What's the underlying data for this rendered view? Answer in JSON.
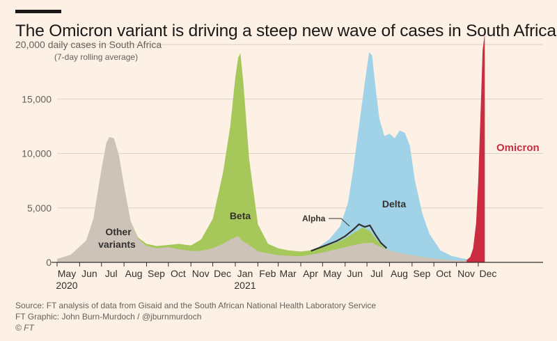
{
  "title": "The Omicron variant is driving a steep new wave of cases in South Africa",
  "chart_data": {
    "type": "area",
    "title": "The Omicron variant is driving a steep new wave of cases in South Africa",
    "ylabel": "20,000 daily cases in South Africa",
    "ylabel_sub": "(7-day rolling average)",
    "y_ticks": [
      0,
      5000,
      10000,
      15000,
      20000
    ],
    "y_tick_labels": [
      "0",
      "5,000",
      "10,000",
      "15,000",
      "20,000"
    ],
    "ylim": [
      0,
      21500
    ],
    "grid": true,
    "x_start": "2020-05-01",
    "x_end": "2021-12-10",
    "x_month_labels": [
      "May",
      "Jun",
      "Jul",
      "Aug",
      "Sep",
      "Oct",
      "Nov",
      "Dec",
      "Jan",
      "Feb",
      "Mar",
      "Apr",
      "May",
      "Jun",
      "Jul",
      "Aug",
      "Sep",
      "Oct",
      "Nov",
      "Dec"
    ],
    "x_year_labels": [
      {
        "label": "2020",
        "at": "2020-05-01"
      },
      {
        "label": "2021",
        "at": "2021-01-01"
      }
    ],
    "series": [
      {
        "name": "Other variants",
        "color": "#cdc3b9",
        "points": [
          [
            "2020-05-01",
            300
          ],
          [
            "2020-05-20",
            700
          ],
          [
            "2020-06-10",
            2000
          ],
          [
            "2020-06-20",
            4000
          ],
          [
            "2020-07-01",
            8500
          ],
          [
            "2020-07-08",
            11000
          ],
          [
            "2020-07-12",
            11500
          ],
          [
            "2020-07-18",
            11400
          ],
          [
            "2020-07-25",
            9800
          ],
          [
            "2020-08-01",
            7000
          ],
          [
            "2020-08-10",
            3800
          ],
          [
            "2020-08-20",
            2200
          ],
          [
            "2020-09-01",
            1500
          ],
          [
            "2020-09-15",
            1300
          ],
          [
            "2020-10-01",
            1400
          ],
          [
            "2020-10-15",
            1200
          ],
          [
            "2020-11-01",
            1050
          ],
          [
            "2020-11-15",
            1050
          ],
          [
            "2020-12-01",
            1300
          ],
          [
            "2020-12-15",
            1700
          ],
          [
            "2020-12-25",
            2100
          ],
          [
            "2021-01-05",
            2400
          ],
          [
            "2021-01-10",
            2000
          ],
          [
            "2021-01-20",
            1600
          ],
          [
            "2021-02-01",
            1000
          ],
          [
            "2021-03-01",
            650
          ],
          [
            "2021-04-01",
            550
          ],
          [
            "2021-04-15",
            700
          ],
          [
            "2021-05-01",
            900
          ],
          [
            "2021-05-20",
            1200
          ],
          [
            "2021-06-10",
            1550
          ],
          [
            "2021-06-25",
            1750
          ],
          [
            "2021-07-08",
            1800
          ],
          [
            "2021-07-20",
            1400
          ],
          [
            "2021-08-05",
            1000
          ],
          [
            "2021-09-01",
            650
          ],
          [
            "2021-10-01",
            330
          ],
          [
            "2021-11-01",
            200
          ],
          [
            "2021-11-20",
            180
          ],
          [
            "2021-12-10",
            150
          ]
        ]
      },
      {
        "name": "Beta",
        "color": "#a6c85a",
        "points": [
          [
            "2020-05-01",
            300
          ],
          [
            "2020-05-20",
            700
          ],
          [
            "2020-06-10",
            2000
          ],
          [
            "2020-06-20",
            4000
          ],
          [
            "2020-07-01",
            8500
          ],
          [
            "2020-07-08",
            11000
          ],
          [
            "2020-07-12",
            11500
          ],
          [
            "2020-07-18",
            11400
          ],
          [
            "2020-07-25",
            9800
          ],
          [
            "2020-08-01",
            7000
          ],
          [
            "2020-08-10",
            3800
          ],
          [
            "2020-08-20",
            2300
          ],
          [
            "2020-09-01",
            1700
          ],
          [
            "2020-09-15",
            1500
          ],
          [
            "2020-10-01",
            1600
          ],
          [
            "2020-10-15",
            1700
          ],
          [
            "2020-11-01",
            1550
          ],
          [
            "2020-11-15",
            2100
          ],
          [
            "2020-12-01",
            4000
          ],
          [
            "2020-12-15",
            8200
          ],
          [
            "2020-12-25",
            12500
          ],
          [
            "2021-01-01",
            17000
          ],
          [
            "2021-01-05",
            18800
          ],
          [
            "2021-01-08",
            19200
          ],
          [
            "2021-01-12",
            16500
          ],
          [
            "2021-01-20",
            9500
          ],
          [
            "2021-02-01",
            3500
          ],
          [
            "2021-02-15",
            1700
          ],
          [
            "2021-03-01",
            1300
          ],
          [
            "2021-03-15",
            1100
          ],
          [
            "2021-04-01",
            1000
          ],
          [
            "2021-04-15",
            1100
          ],
          [
            "2021-05-01",
            1400
          ],
          [
            "2021-05-20",
            1800
          ],
          [
            "2021-06-01",
            2200
          ],
          [
            "2021-06-15",
            2800
          ],
          [
            "2021-06-25",
            3200
          ],
          [
            "2021-07-05",
            2900
          ],
          [
            "2021-07-15",
            2000
          ],
          [
            "2021-07-25",
            1300
          ],
          [
            "2021-08-05",
            1000
          ],
          [
            "2021-09-01",
            650
          ],
          [
            "2021-10-01",
            330
          ],
          [
            "2021-11-01",
            200
          ],
          [
            "2021-11-20",
            180
          ],
          [
            "2021-12-10",
            150
          ]
        ]
      },
      {
        "name": "Delta",
        "color": "#a0d3e8",
        "points": [
          [
            "2021-04-10",
            1000
          ],
          [
            "2021-04-25",
            1400
          ],
          [
            "2021-05-10",
            2100
          ],
          [
            "2021-05-25",
            3300
          ],
          [
            "2021-06-05",
            5500
          ],
          [
            "2021-06-12",
            8500
          ],
          [
            "2021-06-20",
            12500
          ],
          [
            "2021-06-28",
            16500
          ],
          [
            "2021-07-04",
            19300
          ],
          [
            "2021-07-08",
            19000
          ],
          [
            "2021-07-12",
            16500
          ],
          [
            "2021-07-18",
            13200
          ],
          [
            "2021-07-25",
            11600
          ],
          [
            "2021-08-01",
            11800
          ],
          [
            "2021-08-08",
            11400
          ],
          [
            "2021-08-15",
            12100
          ],
          [
            "2021-08-22",
            11900
          ],
          [
            "2021-08-29",
            10700
          ],
          [
            "2021-09-05",
            7500
          ],
          [
            "2021-09-15",
            4500
          ],
          [
            "2021-09-25",
            2600
          ],
          [
            "2021-10-10",
            1100
          ],
          [
            "2021-10-25",
            600
          ],
          [
            "2021-11-10",
            350
          ],
          [
            "2021-11-20",
            250
          ],
          [
            "2021-12-10",
            180
          ]
        ]
      },
      {
        "name": "Alpha",
        "color": "#33302e",
        "points": [
          [
            "2021-04-15",
            1050
          ],
          [
            "2021-05-01",
            1450
          ],
          [
            "2021-05-20",
            1950
          ],
          [
            "2021-06-01",
            2400
          ],
          [
            "2021-06-12",
            3000
          ],
          [
            "2021-06-20",
            3500
          ],
          [
            "2021-06-28",
            3250
          ],
          [
            "2021-07-05",
            3400
          ],
          [
            "2021-07-12",
            2600
          ],
          [
            "2021-07-20",
            1800
          ],
          [
            "2021-07-28",
            1300
          ]
        ]
      },
      {
        "name": "Omicron",
        "color": "#cc2c42",
        "points": [
          [
            "2021-11-15",
            200
          ],
          [
            "2021-11-20",
            500
          ],
          [
            "2021-11-24",
            1300
          ],
          [
            "2021-11-28",
            3600
          ],
          [
            "2021-12-01",
            7500
          ],
          [
            "2021-12-04",
            13500
          ],
          [
            "2021-12-07",
            19500
          ],
          [
            "2021-12-10",
            21000
          ]
        ]
      }
    ],
    "annotations": {
      "other_line1": "Other",
      "other_line2": "variants",
      "beta": "Beta",
      "alpha": "Alpha",
      "delta": "Delta",
      "omicron": "Omicron"
    }
  },
  "footer": {
    "source": "Source: FT analysis of data from Gisaid and the South African National Health Laboratory Service",
    "graphic": "FT Graphic: John Burn-Murdoch / @jburnmurdoch",
    "copyright": "© FT"
  }
}
